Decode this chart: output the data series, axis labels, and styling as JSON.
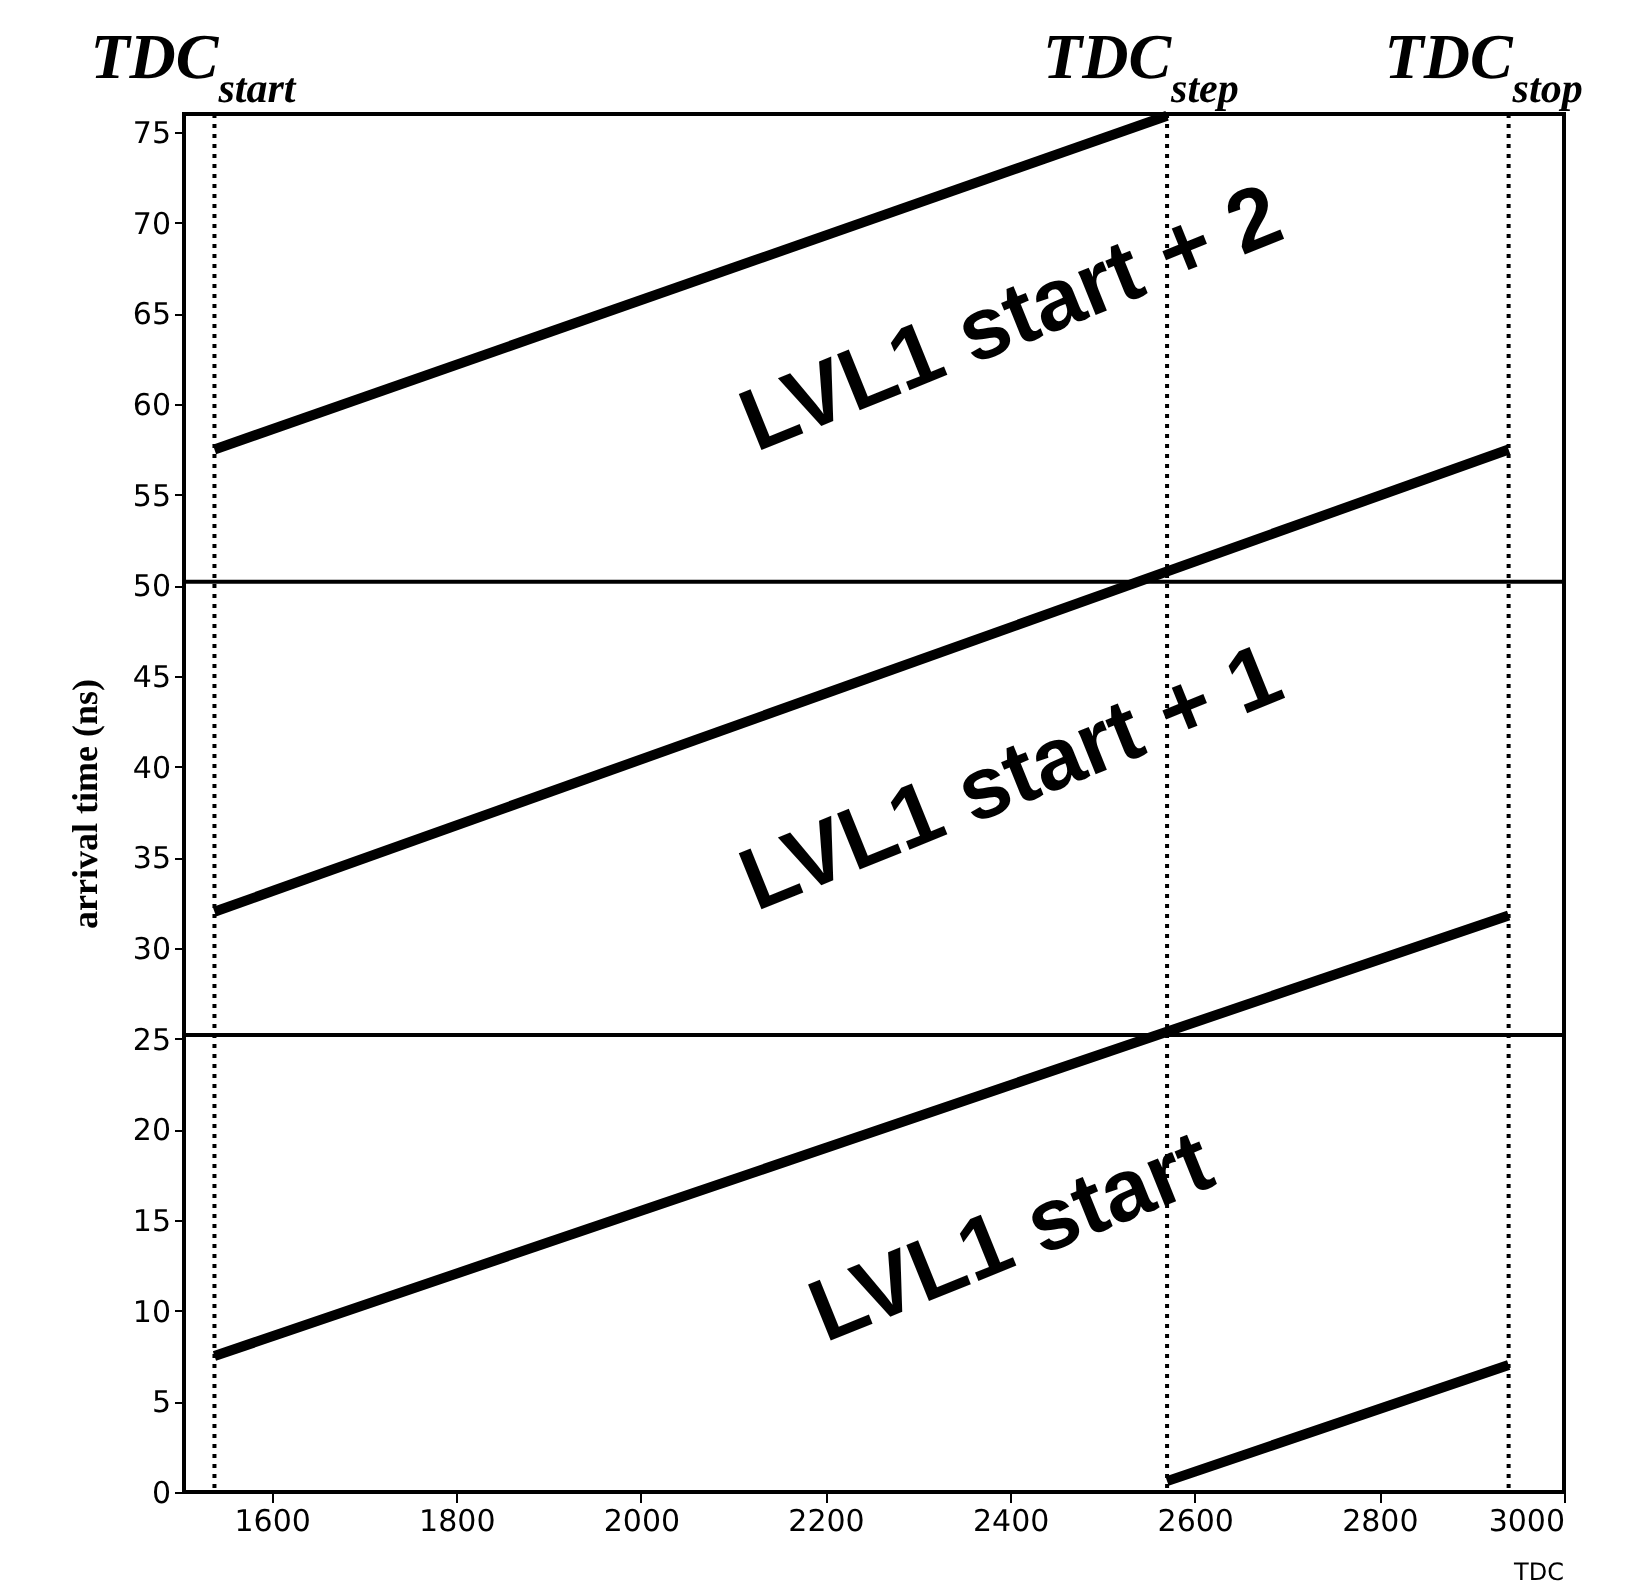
{
  "chart_data": {
    "type": "line",
    "xlabel": "TDC",
    "ylabel": "arrival time (ns)",
    "xlim": [
      1505,
      3000
    ],
    "ylim": [
      0,
      76
    ],
    "xticks": [
      1600,
      1800,
      2000,
      2200,
      2400,
      2600,
      2800,
      3000
    ],
    "yticks": [
      0,
      5,
      10,
      15,
      20,
      25,
      30,
      35,
      40,
      45,
      50,
      55,
      60,
      65,
      70,
      75
    ],
    "series": [
      {
        "color": "#000000",
        "x": [
          1538,
          2940
        ],
        "values": [
          7.5,
          31.8
        ]
      },
      {
        "color": "#000000",
        "x": [
          2570,
          2940
        ],
        "values": [
          0.6,
          7.0
        ]
      },
      {
        "color": "#000000",
        "x": [
          1538,
          2940
        ],
        "values": [
          32.0,
          57.5
        ]
      },
      {
        "color": "#000000",
        "x": [
          1538,
          2570
        ],
        "values": [
          57.5,
          75.9
        ]
      }
    ],
    "ref_lines": [
      {
        "axis": "x",
        "value": 1538,
        "label": "TDC$_{start}$",
        "line_style": "dotted",
        "color": "#000000"
      },
      {
        "axis": "x",
        "value": 2570,
        "label": "TDC$_{step}$",
        "line_style": "dotted",
        "color": "#000000"
      },
      {
        "axis": "x",
        "value": 2940,
        "label": "TDC$_{stop}$",
        "line_style": "dotted",
        "color": "#000000"
      },
      {
        "axis": "y",
        "value": 25.2,
        "color": "#000000",
        "line_style": "solid"
      },
      {
        "axis": "y",
        "value": 50.2,
        "color": "#000000",
        "line_style": "solid"
      }
    ],
    "annotations": [
      "LVL1 start + 2",
      "LVL1 start + 1",
      "LVL1 start"
    ],
    "grid": false,
    "marker": "none",
    "line_style": "solid"
  }
}
